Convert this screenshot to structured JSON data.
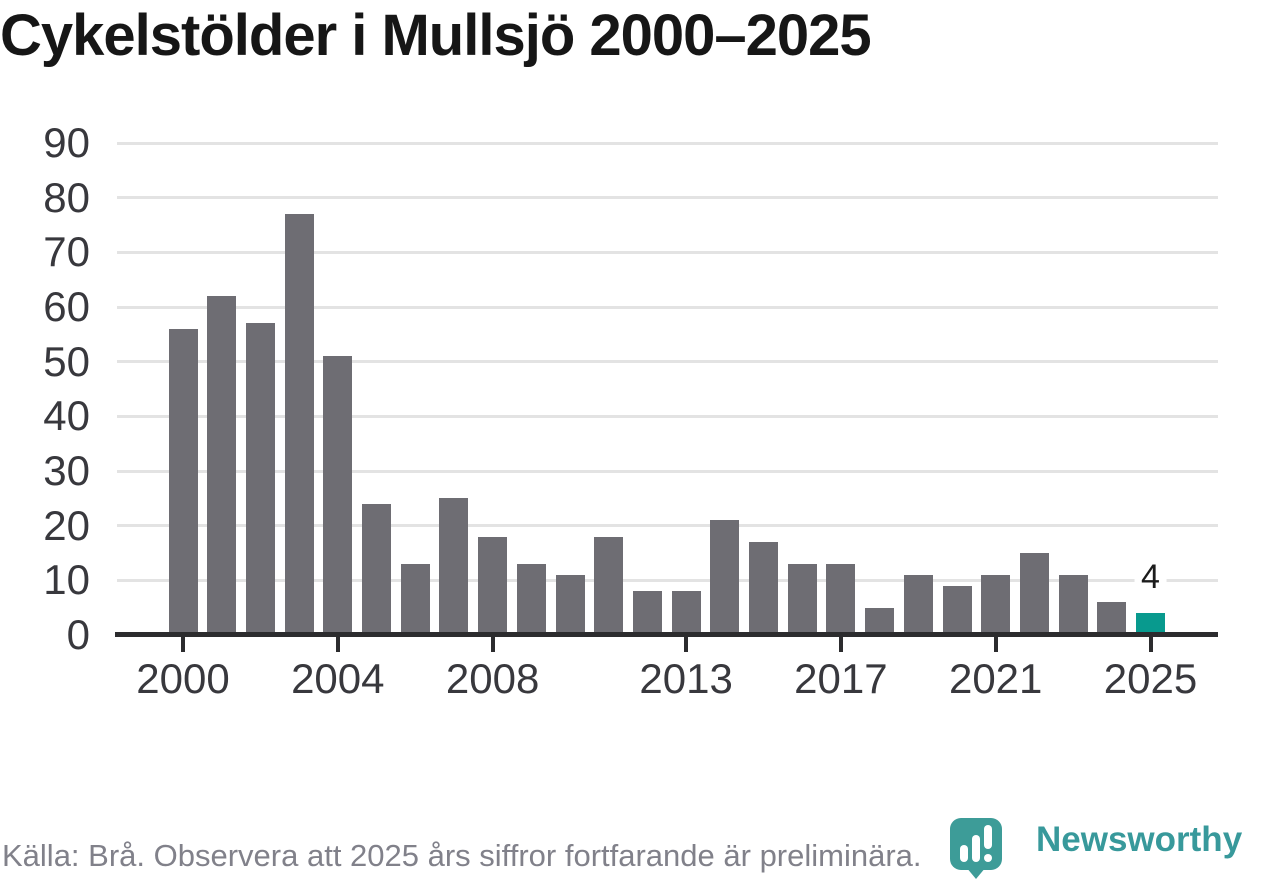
{
  "title": "Cykelstölder i Mullsjö 2000–2025",
  "chart_data": {
    "type": "bar",
    "title": "Cykelstölder i Mullsjö 2000–2025",
    "categories": [
      2000,
      2001,
      2002,
      2003,
      2004,
      2005,
      2006,
      2007,
      2008,
      2009,
      2010,
      2011,
      2012,
      2013,
      2014,
      2015,
      2016,
      2017,
      2018,
      2019,
      2020,
      2021,
      2022,
      2023,
      2024,
      2025
    ],
    "values": [
      56,
      62,
      57,
      77,
      51,
      24,
      13,
      25,
      18,
      13,
      11,
      18,
      8,
      8,
      21,
      17,
      13,
      13,
      5,
      11,
      9,
      11,
      15,
      11,
      6,
      4
    ],
    "xlabel": "",
    "ylabel": "",
    "ylim": [
      0,
      90
    ],
    "ytick_step": 10,
    "xticks": [
      2000,
      2004,
      2008,
      2013,
      2017,
      2021,
      2025
    ],
    "grid": true,
    "legend": "none",
    "highlight": {
      "category": 2025,
      "value": 4,
      "label": "4"
    },
    "colors": {
      "bar": "#6e6d73",
      "highlight_bar": "#089a8e",
      "gridline": "#e3e3e3",
      "axis": "#2c2c2e",
      "tick_label": "#38383d",
      "value_label": "#1c1c1c"
    }
  },
  "footer": {
    "source_note": "Källa: Brå. Observera att 2025 års siffror fortfarande är preliminära."
  },
  "branding": {
    "name": "Newsworthy",
    "icon": "newsworthy-bubble-barchart-icon",
    "icon_color": "#3d9c98",
    "text_color": "#38999b"
  }
}
